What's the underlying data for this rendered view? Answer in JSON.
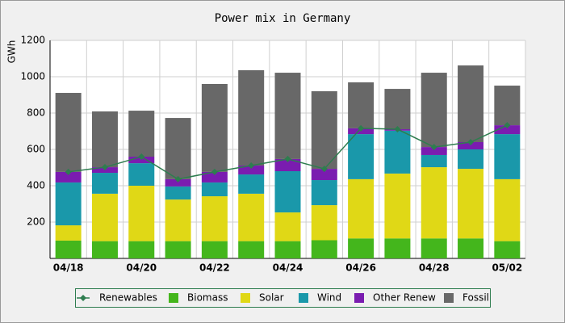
{
  "chart_data": {
    "type": "bar",
    "stacked": true,
    "title": "Power mix in Germany",
    "y_label": "GWh",
    "categories": [
      "04/18",
      null,
      "04/20",
      null,
      "04/22",
      null,
      "04/24",
      null,
      "04/26",
      null,
      "04/28",
      null,
      "05/02"
    ],
    "series": [
      {
        "name": "Renewables",
        "type": "line",
        "color": "#2e7d4f",
        "values": [
          476,
          502,
          560,
          436,
          476,
          511,
          547,
          493,
          716,
          711,
          613,
          640,
          733
        ]
      },
      {
        "name": "Biomass",
        "color": "#44b61c",
        "values": [
          98,
          95,
          95,
          95,
          95,
          95,
          95,
          100,
          110,
          110,
          110,
          110,
          95
        ]
      },
      {
        "name": "Solar",
        "color": "#e0d816",
        "values": [
          84,
          261,
          305,
          229,
          247,
          261,
          158,
          193,
          326,
          357,
          392,
          383,
          341
        ]
      },
      {
        "name": "Wind",
        "color": "#1a98aa",
        "values": [
          236,
          115,
          124,
          72,
          76,
          106,
          227,
          138,
          248,
          236,
          67,
          107,
          248
        ]
      },
      {
        "name": "Other Renew",
        "color": "#7a1cb0",
        "values": [
          58,
          31,
          36,
          40,
          58,
          49,
          67,
          62,
          32,
          8,
          44,
          40,
          49
        ]
      },
      {
        "name": "Fossil",
        "color": "#686868",
        "values": [
          435,
          307,
          253,
          337,
          484,
          525,
          475,
          427,
          253,
          222,
          409,
          422,
          218
        ]
      }
    ],
    "ylim": [
      0,
      1200
    ],
    "yticks": [
      200,
      400,
      600,
      800,
      1000,
      1200
    ],
    "grid": true,
    "legend": "bottom"
  }
}
